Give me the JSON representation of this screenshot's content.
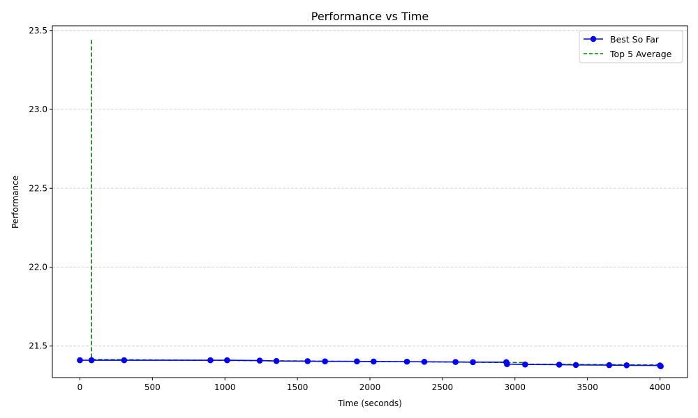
{
  "chart_data": {
    "type": "line",
    "title": "Performance vs Time",
    "xlabel": "Time (seconds)",
    "ylabel": "Performance",
    "xlim": [
      -190,
      4190
    ],
    "ylim": [
      21.3,
      23.53
    ],
    "xticks": [
      0,
      500,
      1000,
      1500,
      2000,
      2500,
      3000,
      3500,
      4000
    ],
    "yticks": [
      21.5,
      22.0,
      22.5,
      23.0,
      23.5
    ],
    "xtick_labels": [
      "0",
      "500",
      "1000",
      "1500",
      "2000",
      "2500",
      "3000",
      "3500",
      "4000"
    ],
    "ytick_labels": [
      "21.5",
      "22.0",
      "22.5",
      "23.0",
      "23.5"
    ],
    "grid": {
      "y": true,
      "x": false,
      "style": "dashed",
      "color": "#cccccc"
    },
    "legend_position": "top-right",
    "series": [
      {
        "name": "Best So Far",
        "color": "#0000ff",
        "style": "solid",
        "marker": "circle",
        "x": [
          0,
          80,
          305,
          900,
          1015,
          1240,
          1355,
          1570,
          1690,
          1910,
          2025,
          2255,
          2375,
          2590,
          2710,
          2940,
          2945,
          3070,
          3305,
          3420,
          3650,
          3770,
          4000,
          4005
        ],
        "y": [
          21.41,
          21.41,
          21.41,
          21.41,
          21.41,
          21.408,
          21.405,
          21.404,
          21.403,
          21.403,
          21.402,
          21.401,
          21.4,
          21.399,
          21.398,
          21.398,
          21.385,
          21.383,
          21.382,
          21.38,
          21.379,
          21.378,
          21.377,
          21.372
        ]
      },
      {
        "name": "Top 5 Average",
        "color": "#008000",
        "style": "dashed",
        "marker": "none",
        "x": [
          80,
          80,
          3070,
          3070,
          4005
        ],
        "y": [
          23.44,
          21.415,
          21.395,
          21.385,
          21.38
        ]
      }
    ]
  }
}
